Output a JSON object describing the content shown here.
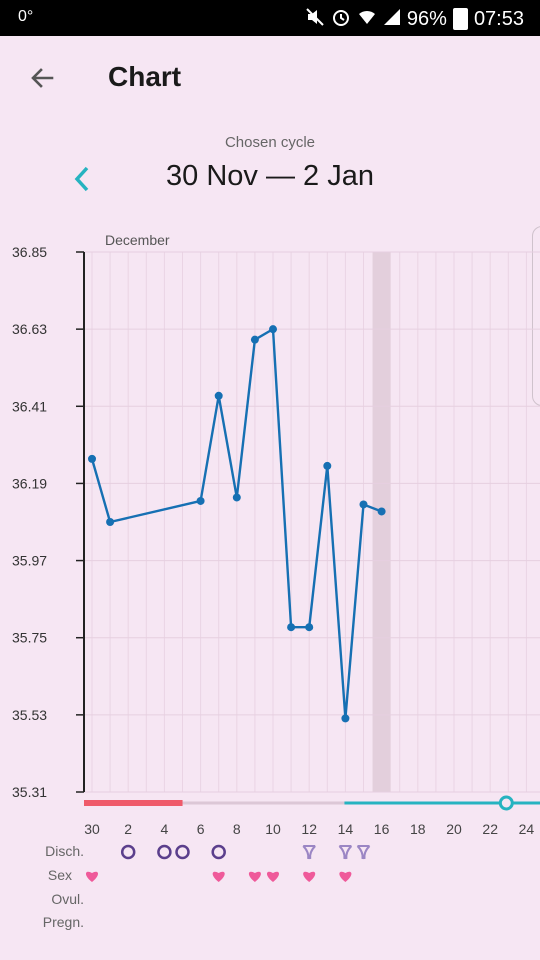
{
  "status_bar": {
    "left_text": "0°",
    "battery": "96%",
    "time": "07:53",
    "icons": [
      "mute-icon",
      "alarm-icon",
      "wifi-icon",
      "signal-icon",
      "battery-icon"
    ]
  },
  "header": {
    "title": "Chart",
    "back_icon": "back-arrow-icon"
  },
  "cycle": {
    "label": "Chosen cycle",
    "range": "30 Nov — 2 Jan",
    "prev_icon": "chevron-left-icon"
  },
  "month_label": "December",
  "colors": {
    "line": "#1670b3",
    "period": "#ef5a6a",
    "fertile": "#26b3c0",
    "discharge": "#5b3f8c",
    "heart": "#ef5a9a",
    "background": "#f6e6f3"
  },
  "chart_data": {
    "type": "line",
    "ylim": [
      35.31,
      36.85
    ],
    "y_ticks": [
      "36.85",
      "36.63",
      "36.41",
      "36.19",
      "35.97",
      "35.75",
      "35.53",
      "35.31"
    ],
    "x_ticks": [
      "30",
      "2",
      "4",
      "6",
      "8",
      "10",
      "12",
      "14",
      "16",
      "18",
      "20",
      "22",
      "24"
    ],
    "series": [
      {
        "x": [
          0,
          1,
          6,
          7,
          8,
          9,
          10,
          11,
          12,
          13,
          14,
          15,
          16
        ],
        "values": [
          36.26,
          36.08,
          36.14,
          36.44,
          36.15,
          36.6,
          36.63,
          35.78,
          35.78,
          36.24,
          35.52,
          36.13,
          36.11
        ]
      }
    ],
    "highlight_day": 16,
    "period_days": [
      0,
      5
    ],
    "fertile_start_day": 15,
    "ovulation_day": 23
  },
  "rows": {
    "discharge": {
      "label": "Disch.",
      "days": [
        2,
        4,
        5,
        7
      ],
      "light_days": [
        12,
        14,
        15
      ]
    },
    "sex": {
      "label": "Sex",
      "days": [
        0,
        7,
        9,
        10,
        12,
        14
      ]
    },
    "ovulation": {
      "label": "Ovul.",
      "days": []
    },
    "pregnancy": {
      "label": "Pregn.",
      "days": []
    }
  }
}
